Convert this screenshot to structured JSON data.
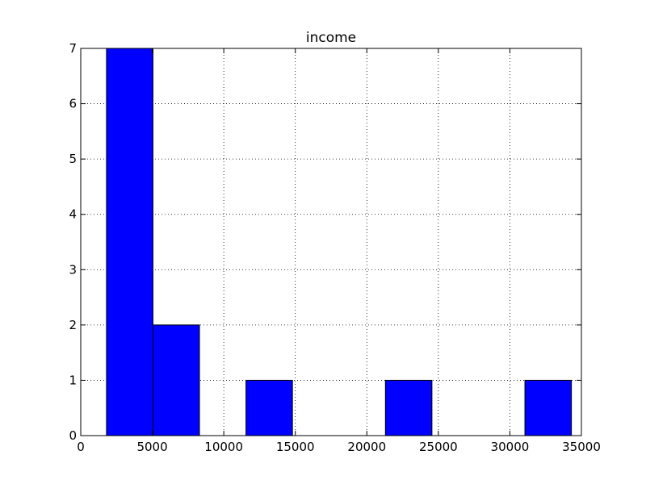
{
  "chart_data": {
    "type": "bar",
    "title": "income",
    "xlabel": "",
    "ylabel": "",
    "xlim": [
      0,
      35000
    ],
    "ylim": [
      0,
      7
    ],
    "grid": true,
    "x_ticks": [
      0,
      5000,
      10000,
      15000,
      20000,
      25000,
      30000,
      35000
    ],
    "y_ticks": [
      0,
      1,
      2,
      3,
      4,
      5,
      6,
      7
    ],
    "bins": [
      {
        "start": 1800,
        "end": 5050,
        "count": 7
      },
      {
        "start": 5050,
        "end": 8300,
        "count": 2
      },
      {
        "start": 8300,
        "end": 11550,
        "count": 0
      },
      {
        "start": 11550,
        "end": 14800,
        "count": 1
      },
      {
        "start": 14800,
        "end": 18050,
        "count": 0
      },
      {
        "start": 18050,
        "end": 21300,
        "count": 0
      },
      {
        "start": 21300,
        "end": 24550,
        "count": 1
      },
      {
        "start": 24550,
        "end": 27800,
        "count": 0
      },
      {
        "start": 27800,
        "end": 31050,
        "count": 0
      },
      {
        "start": 31050,
        "end": 34300,
        "count": 1
      }
    ],
    "bar_color": "#0000ff",
    "edge_color": "#000000"
  }
}
